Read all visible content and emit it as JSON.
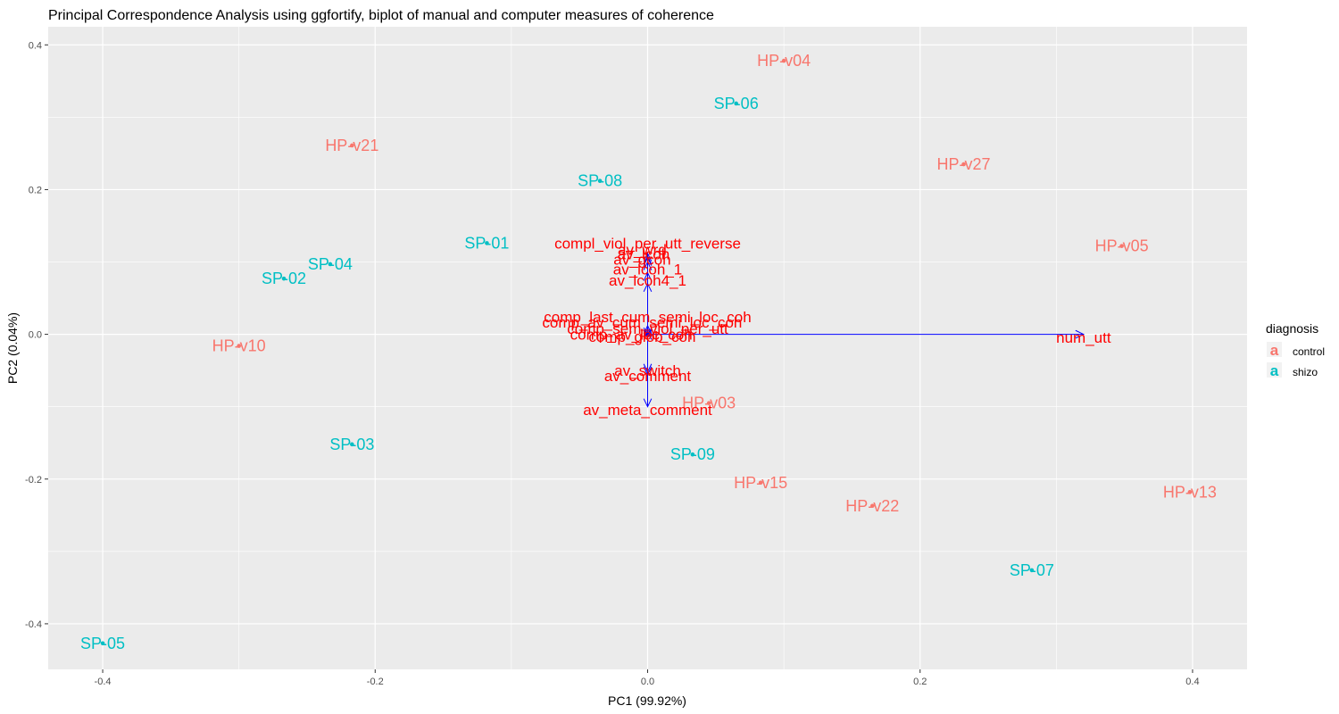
{
  "chart_data": {
    "type": "scatter",
    "title": "Principal Correspondence Analysis using ggfortify, biplot of manual and computer measures of coherence",
    "xlabel": "PC1 (99.92%)",
    "ylabel": "PC2 (0.04%)",
    "xlim": [
      -0.44,
      0.44
    ],
    "ylim": [
      -0.463,
      0.425
    ],
    "xticks": [
      -0.4,
      -0.2,
      0.0,
      0.2,
      0.4
    ],
    "xtick_labels": [
      "-0.4",
      "-0.2",
      "0.0",
      "0.2",
      "0.4"
    ],
    "yticks": [
      -0.4,
      -0.2,
      0.0,
      0.2,
      0.4
    ],
    "ytick_labels": [
      "-0.4",
      "-0.2",
      "0.0",
      "0.2",
      "0.4"
    ],
    "grid": true,
    "background": "#ebebeb",
    "legend": {
      "title": "diagnosis",
      "position": "right",
      "glyph": "a",
      "entries": [
        {
          "name": "control",
          "color": "#f8766d"
        },
        {
          "name": "shizo",
          "color": "#00bfc4"
        }
      ]
    },
    "points": [
      {
        "label": "HP-v04",
        "group": "control",
        "x": 0.1,
        "y": 0.378
      },
      {
        "label": "SP-06",
        "group": "shizo",
        "x": 0.065,
        "y": 0.319
      },
      {
        "label": "HP-v21",
        "group": "control",
        "x": -0.217,
        "y": 0.261
      },
      {
        "label": "HP-v27",
        "group": "control",
        "x": 0.232,
        "y": 0.235
      },
      {
        "label": "SP-08",
        "group": "shizo",
        "x": -0.035,
        "y": 0.212
      },
      {
        "label": "HP-v05",
        "group": "control",
        "x": 0.348,
        "y": 0.122
      },
      {
        "label": "SP-01",
        "group": "shizo",
        "x": -0.118,
        "y": 0.126
      },
      {
        "label": "SP-04",
        "group": "shizo",
        "x": -0.233,
        "y": 0.097
      },
      {
        "label": "SP-02",
        "group": "shizo",
        "x": -0.267,
        "y": 0.077
      },
      {
        "label": "HP-v10",
        "group": "control",
        "x": -0.3,
        "y": -0.016
      },
      {
        "label": "HP-v03",
        "group": "control",
        "x": 0.045,
        "y": -0.095
      },
      {
        "label": "SP-03",
        "group": "shizo",
        "x": -0.217,
        "y": -0.152
      },
      {
        "label": "SP-09",
        "group": "shizo",
        "x": 0.033,
        "y": -0.166
      },
      {
        "label": "HP-v15",
        "group": "control",
        "x": 0.083,
        "y": -0.205
      },
      {
        "label": "HP-v22",
        "group": "control",
        "x": 0.165,
        "y": -0.237
      },
      {
        "label": "HP-v13",
        "group": "control",
        "x": 0.398,
        "y": -0.218
      },
      {
        "label": "SP-07",
        "group": "shizo",
        "x": 0.282,
        "y": -0.326
      },
      {
        "label": "SP-05",
        "group": "shizo",
        "x": -0.4,
        "y": -0.427
      }
    ],
    "loadings": [
      {
        "label": "num_utt",
        "x": 0.32,
        "y": 0.0,
        "label_x": 0.32,
        "label_y": -0.004
      },
      {
        "label": "compl_viol_per_utt_reverse",
        "x": 0.0,
        "y": 0.112,
        "label_x": 0.0,
        "label_y": 0.126
      },
      {
        "label": "av_wrd",
        "x": 0.0,
        "y": 0.108,
        "label_x": -0.004,
        "label_y": 0.117
      },
      {
        "label": "av_lcoh",
        "x": 0.0,
        "y": 0.106,
        "label_x": -0.003,
        "label_y": 0.111
      },
      {
        "label": "av_gcoh",
        "x": 0.0,
        "y": 0.1,
        "label_x": -0.004,
        "label_y": 0.104
      },
      {
        "label": "av_lcoh_1",
        "x": 0.0,
        "y": 0.085,
        "label_x": 0.0,
        "label_y": 0.09
      },
      {
        "label": "av_lcoh4_1",
        "x": 0.0,
        "y": 0.07,
        "label_x": 0.0,
        "label_y": 0.075
      },
      {
        "label": "comp_last_cum_semi_loc_coh",
        "x": 0.0,
        "y": 0.012,
        "label_x": 0.0,
        "label_y": 0.024
      },
      {
        "label": "comp_av_cum_semi_loc_coh",
        "x": 0.0,
        "y": 0.008,
        "label_x": -0.004,
        "label_y": 0.017
      },
      {
        "label": "comp_sem_viol_per_utt",
        "x": 0.0,
        "y": 0.004,
        "label_x": 0.0,
        "label_y": 0.008
      },
      {
        "label": "comp_av_loc_coh",
        "x": 0.0,
        "y": -0.002,
        "label_x": -0.012,
        "label_y": 0.0
      },
      {
        "label": "comp_glob_coh",
        "x": 0.0,
        "y": -0.005,
        "label_x": -0.004,
        "label_y": -0.003
      },
      {
        "label": "av_switch",
        "x": 0.0,
        "y": -0.052,
        "label_x": 0.0,
        "label_y": -0.05
      },
      {
        "label": "av_comment",
        "x": 0.0,
        "y": -0.056,
        "label_x": 0.0,
        "label_y": -0.057
      },
      {
        "label": "av_meta_comment",
        "x": 0.0,
        "y": -0.1,
        "label_x": 0.0,
        "label_y": -0.104
      }
    ]
  }
}
